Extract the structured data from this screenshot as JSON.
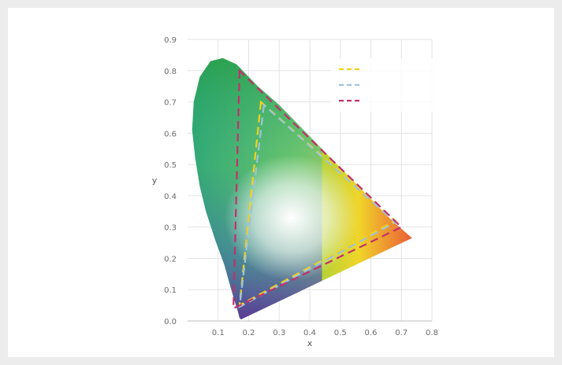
{
  "chart_data": {
    "type": "scatter",
    "title": "",
    "xlabel": "x",
    "ylabel": "y",
    "xlim": [
      0.0,
      0.8
    ],
    "ylim": [
      0.0,
      0.9
    ],
    "x_ticks": [
      "0.1",
      "0.2",
      "0.3",
      "0.4",
      "0.5",
      "0.6",
      "0.7",
      "0.8"
    ],
    "y_ticks": [
      "0.0",
      "0.1",
      "0.2",
      "0.3",
      "0.4",
      "0.5",
      "0.6",
      "0.7",
      "0.8",
      "0.9"
    ],
    "grid": true,
    "legend_position": "top-right",
    "spectral_locus": [
      [
        0.175,
        0.005
      ],
      [
        0.17,
        0.01
      ],
      [
        0.165,
        0.03
      ],
      [
        0.155,
        0.06
      ],
      [
        0.14,
        0.11
      ],
      [
        0.12,
        0.18
      ],
      [
        0.09,
        0.26
      ],
      [
        0.06,
        0.35
      ],
      [
        0.04,
        0.43
      ],
      [
        0.025,
        0.52
      ],
      [
        0.015,
        0.61
      ],
      [
        0.02,
        0.7
      ],
      [
        0.04,
        0.78
      ],
      [
        0.075,
        0.83
      ],
      [
        0.115,
        0.84
      ],
      [
        0.16,
        0.82
      ],
      [
        0.23,
        0.75
      ],
      [
        0.3,
        0.69
      ],
      [
        0.37,
        0.62
      ],
      [
        0.44,
        0.55
      ],
      [
        0.52,
        0.47
      ],
      [
        0.6,
        0.39
      ],
      [
        0.67,
        0.32
      ],
      [
        0.735,
        0.265
      ]
    ],
    "series": [
      {
        "name": "",
        "color": "#f2d21b",
        "style": "dashed",
        "points": [
          [
            0.24,
            0.7
          ],
          [
            0.17,
            0.05
          ],
          [
            0.68,
            0.32
          ]
        ]
      },
      {
        "name": "",
        "color": "#9fc3d8",
        "style": "dashed",
        "points": [
          [
            0.25,
            0.69
          ],
          [
            0.17,
            0.045
          ],
          [
            0.68,
            0.315
          ]
        ]
      },
      {
        "name": "",
        "color": "#c2306b",
        "style": "dashed",
        "points": [
          [
            0.17,
            0.8
          ],
          [
            0.15,
            0.04
          ],
          [
            0.7,
            0.3
          ]
        ]
      }
    ]
  }
}
